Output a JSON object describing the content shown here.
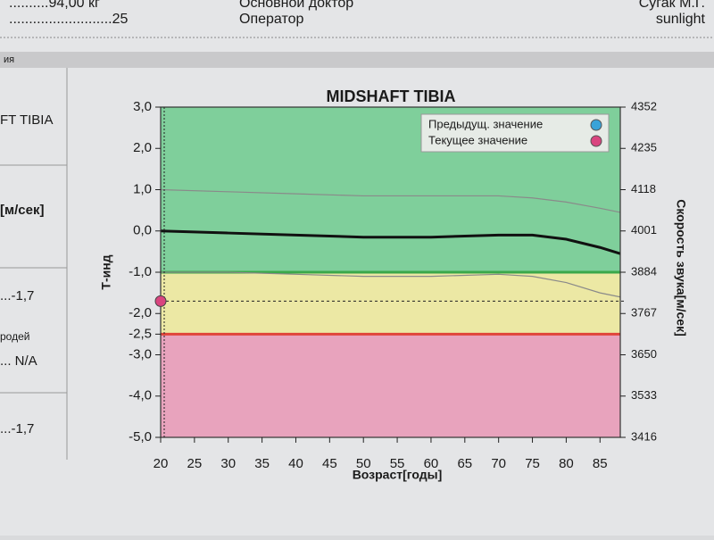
{
  "document": {
    "top_left": [
      "..........94,00 кг",
      "..........................25"
    ],
    "top_right": [
      {
        "label": "Основной доктор",
        "value": "Сугак М.Г."
      },
      {
        "label": "Оператор",
        "value": "sunlight"
      }
    ],
    "band_text": "ия",
    "left_panel": [
      "FT TIBIA",
      "[м/сек]",
      "...-1,7",
      "родей",
      "... N/A",
      "...-1,7"
    ]
  },
  "chart_data": {
    "type": "line",
    "title": "MIDSHAFT TIBIA",
    "x_label": "Возраст[годы]",
    "y_label": "Т-инд",
    "y2_label": "Скорость звука[м/сек]",
    "xlim": [
      20,
      88
    ],
    "xticks": [
      20,
      25,
      30,
      35,
      40,
      45,
      50,
      55,
      60,
      65,
      70,
      75,
      80,
      85
    ],
    "ylim": [
      -5,
      3
    ],
    "yticks": [
      {
        "value": 3,
        "label": "3,0"
      },
      {
        "value": 2,
        "label": "2,0"
      },
      {
        "value": 1,
        "label": "1,0"
      },
      {
        "value": 0,
        "label": "0,0"
      },
      {
        "value": -1,
        "label": "-1,0"
      },
      {
        "value": -2,
        "label": "-2,0"
      },
      {
        "value": -2.5,
        "label": "-2,5"
      },
      {
        "value": -3,
        "label": "-3,0"
      },
      {
        "value": -4,
        "label": "-4,0"
      },
      {
        "value": -5,
        "label": "-5,0"
      }
    ],
    "y2lim": [
      3416,
      4352
    ],
    "y2ticks": [
      4352,
      4235,
      4118,
      4001,
      3884,
      3767,
      3650,
      3533,
      3416
    ],
    "bands": [
      {
        "from": -1,
        "to": 3,
        "color": "#7fcf9b"
      },
      {
        "from": -2.5,
        "to": -1,
        "color": "#ece8a4"
      },
      {
        "from": -5,
        "to": -2.5,
        "color": "#e8a3bd"
      }
    ],
    "thresholds": [
      {
        "value": -1,
        "color": "#3aa84a"
      },
      {
        "value": -2.5,
        "color": "#e0443a"
      }
    ],
    "x": [
      20,
      30,
      40,
      50,
      60,
      70,
      75,
      80,
      85,
      88
    ],
    "reference_lines": [
      {
        "color": "#8a8a8a",
        "width": 1.2,
        "values": [
          1.0,
          0.95,
          0.9,
          0.85,
          0.85,
          0.85,
          0.8,
          0.7,
          0.55,
          0.45
        ]
      },
      {
        "color": "#111111",
        "width": 3,
        "values": [
          0.0,
          -0.05,
          -0.1,
          -0.15,
          -0.15,
          -0.1,
          -0.1,
          -0.2,
          -0.4,
          -0.55
        ]
      },
      {
        "color": "#8a8a8a",
        "width": 1.2,
        "values": [
          -1.0,
          -1.0,
          -1.05,
          -1.1,
          -1.1,
          -1.05,
          -1.1,
          -1.25,
          -1.5,
          -1.6
        ]
      }
    ],
    "markers": [
      {
        "name": "Предыдущ. значение",
        "color": "#3aa3d8",
        "x": [],
        "values": []
      },
      {
        "name": "Текущее значение",
        "color": "#d9457f",
        "x": [
          20
        ],
        "values": [
          -1.7
        ]
      }
    ]
  }
}
